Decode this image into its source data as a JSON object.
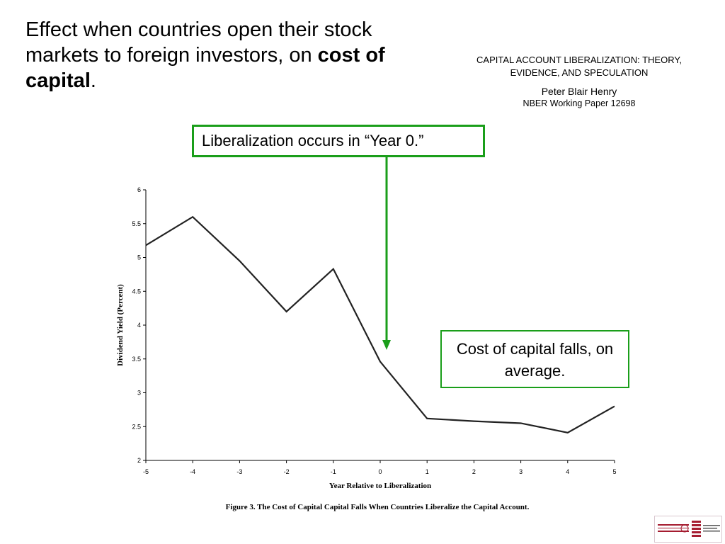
{
  "slide": {
    "headline_prefix": "Effect when countries open their stock markets to foreign investors, on ",
    "headline_bold": "cost of capital",
    "headline_suffix": "."
  },
  "source": {
    "title": "CAPITAL ACCOUNT LIBERALIZATION: THEORY, EVIDENCE, AND SPECULATION",
    "author": "Peter Blair Henry",
    "paper": "NBER Working Paper 12698"
  },
  "callouts": {
    "year": "Liberalization occurs in “Year 0.”",
    "fall": "Cost of capital falls, on average."
  },
  "colors": {
    "accent_green": "#1a9e1a",
    "line": "#222222",
    "harvard_crimson": "#a51c30"
  },
  "logo": {
    "icon": "harvard-kennedy-school-logo"
  },
  "chart_data": {
    "type": "line",
    "title": "",
    "caption": "Figure 3.  The Cost of Capital Capital Falls When Countries Liberalize the Capital Account.",
    "xlabel": "Year Relative to Liberalization",
    "ylabel": "Dividend Yield (Percent)",
    "x": [
      -5,
      -4,
      -3,
      -2,
      -1,
      0,
      1,
      2,
      3,
      4,
      5
    ],
    "series": [
      {
        "values": [
          5.18,
          5.6,
          4.95,
          4.2,
          4.83,
          3.46,
          2.62,
          2.58,
          2.55,
          2.41,
          2.8
        ]
      }
    ],
    "x_ticks": [
      "-5",
      "-4",
      "-3",
      "-2",
      "-1",
      "0",
      "1",
      "2",
      "3",
      "4",
      "5"
    ],
    "y_ticks": [
      "2",
      "2.5",
      "3",
      "3.5",
      "4",
      "4.5",
      "5",
      "5.5",
      "6"
    ],
    "xlim": [
      -5,
      5
    ],
    "ylim": [
      2,
      6
    ],
    "grid": false,
    "legend": "none",
    "annotation_arrow_x": 0
  }
}
